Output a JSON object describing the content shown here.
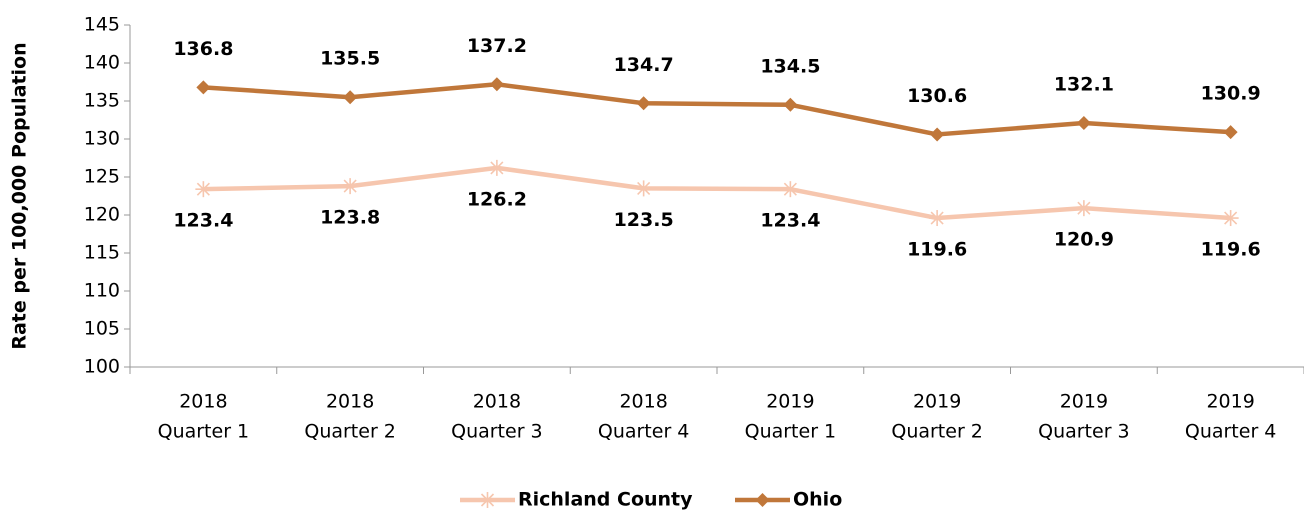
{
  "chart_data": {
    "type": "line",
    "y_label": "Rate per 100,000 Population",
    "categories": [
      [
        "2018",
        "Quarter 1"
      ],
      [
        "2018",
        "Quarter 2"
      ],
      [
        "2018",
        "Quarter 3"
      ],
      [
        "2018",
        "Quarter 4"
      ],
      [
        "2019",
        "Quarter 1"
      ],
      [
        "2019",
        "Quarter 2"
      ],
      [
        "2019",
        "Quarter 3"
      ],
      [
        "2019",
        "Quarter 4"
      ]
    ],
    "series": [
      {
        "name": "Richland County",
        "color": "#f6c6ae",
        "marker": "asterisk",
        "label_position": "below",
        "values": [
          123.4,
          123.8,
          126.2,
          123.5,
          123.4,
          119.6,
          120.9,
          119.6
        ]
      },
      {
        "name": "Ohio",
        "color": "#c0773a",
        "marker": "diamond",
        "label_position": "above",
        "values": [
          136.8,
          135.5,
          137.2,
          134.7,
          134.5,
          130.6,
          132.1,
          130.9
        ]
      }
    ],
    "ylim": [
      100,
      145
    ],
    "yticks": [
      100,
      105,
      110,
      115,
      120,
      125,
      130,
      135,
      140,
      145
    ],
    "grid": false,
    "legend": "bottom"
  }
}
